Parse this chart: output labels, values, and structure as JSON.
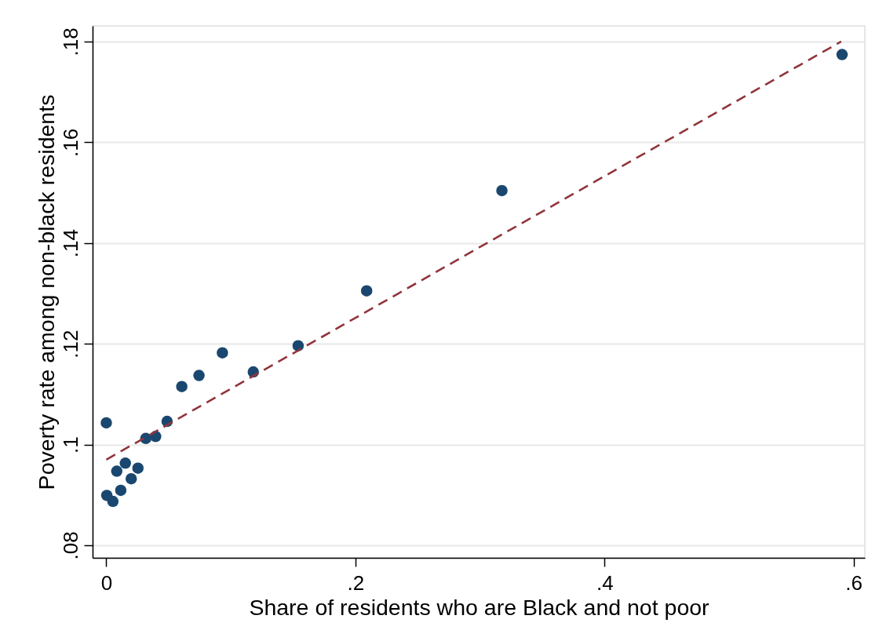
{
  "chart_data": {
    "type": "scatter",
    "xlabel": "Share of residents who are Black and not poor",
    "ylabel": "Poverty rate among non-black residents",
    "xlim": [
      -0.011,
      0.609
    ],
    "ylim": [
      0.0775,
      0.1831
    ],
    "xticks": [
      0,
      {
        "value": 0.2,
        "label": ".2"
      },
      {
        "value": 0.4,
        "label": ".4"
      },
      {
        "value": 0.6,
        "label": ".6"
      }
    ],
    "yticks": [
      {
        "value": 0.08,
        "label": ".08"
      },
      {
        "value": 0.1,
        "label": ".1"
      },
      {
        "value": 0.12,
        "label": ".12"
      },
      {
        "value": 0.14,
        "label": ".14"
      },
      {
        "value": 0.16,
        "label": ".16"
      },
      {
        "value": 0.18,
        "label": ".18"
      }
    ],
    "grid": "y",
    "series": [
      {
        "marker": "circle",
        "color": "#1a476f",
        "x": [
          0.0,
          0.0004,
          0.0053,
          0.0116,
          0.0084,
          0.0153,
          0.02,
          0.0254,
          0.0317,
          0.0396,
          0.0488,
          0.0606,
          0.0744,
          0.0932,
          0.118,
          0.154,
          0.209,
          0.3176,
          0.5907
        ],
        "values": [
          0.1043,
          0.0899,
          0.0887,
          0.0909,
          0.0947,
          0.0963,
          0.0932,
          0.0953,
          0.1012,
          0.1016,
          0.1046,
          0.1115,
          0.1137,
          0.1182,
          0.1144,
          0.1196,
          0.1305,
          0.1504,
          0.1774
        ]
      },
      {
        "type": "line",
        "line_style": "dashed",
        "color": "#90353b",
        "x": [
          0.0,
          0.59
        ],
        "values": [
          0.097,
          0.18
        ]
      }
    ]
  }
}
